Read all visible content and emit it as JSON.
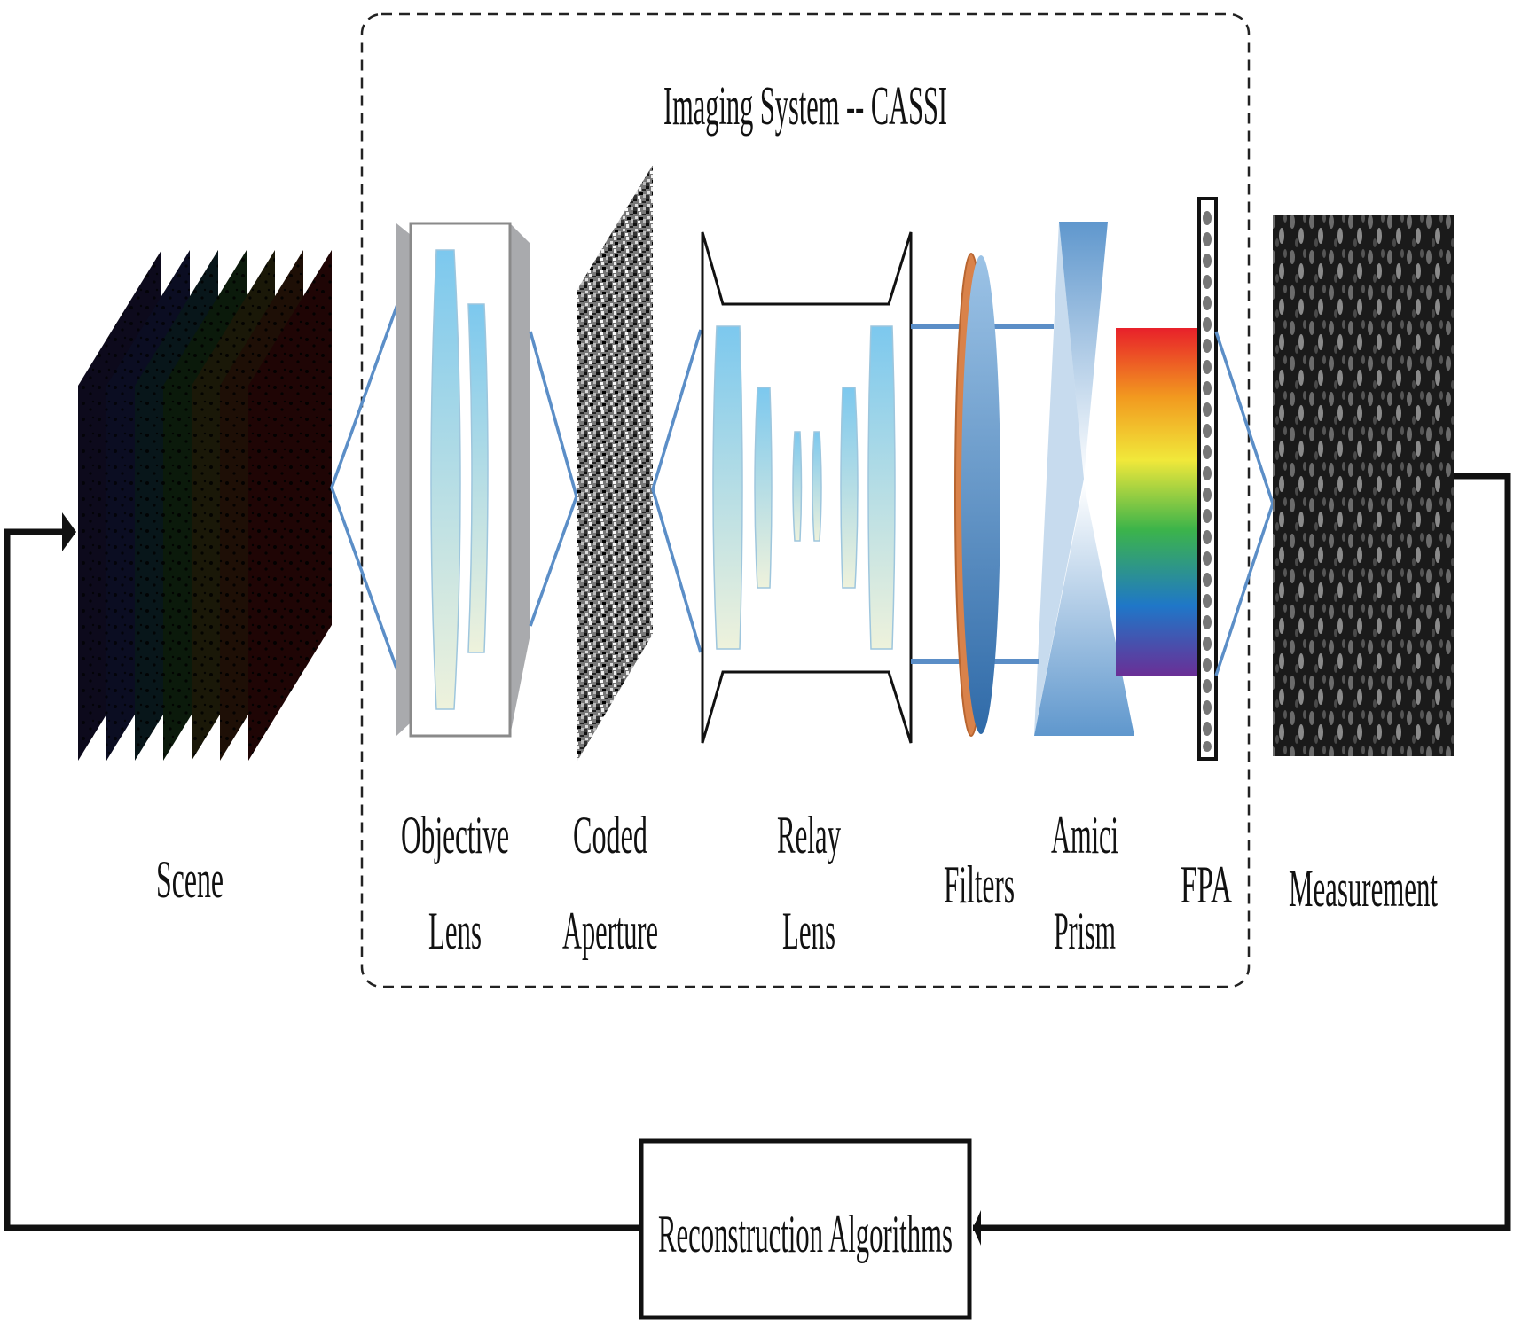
{
  "title": "Imaging System -- CASSI",
  "components": {
    "scene": "Scene",
    "objective_lens": [
      "Objective",
      "Lens"
    ],
    "coded_aperture": [
      "Coded",
      "Aperture"
    ],
    "relay_lens": [
      "Relay",
      "Lens"
    ],
    "filters": "Filters",
    "amici_prism": [
      "Amici",
      "Prism"
    ],
    "fpa": "FPA",
    "measurement": "Measurement"
  },
  "reconstruction": "Reconstruction Algorithms",
  "colors": {
    "optic_line": "#5b8ec7",
    "lens_fill_top": "#7cc8ee",
    "lens_fill_bottom": "#eef2dc",
    "housing": "#a9aaad",
    "filter_rim": "#d9824a",
    "filter_body": "#4d86bf",
    "prism": "#5f97cd",
    "spectrum": [
      "#e8202a",
      "#f29a1f",
      "#f1e83a",
      "#3cb44a",
      "#1f77c8",
      "#6a2f96"
    ],
    "arrow": "#111111"
  }
}
